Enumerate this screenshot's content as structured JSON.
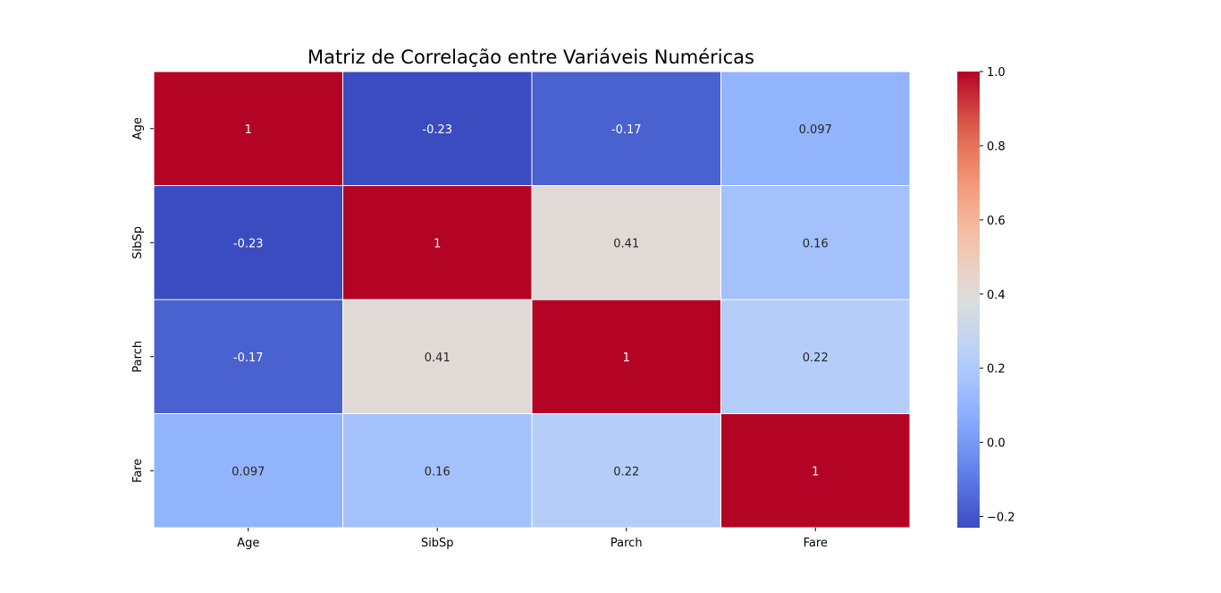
{
  "chart_data": {
    "type": "heatmap",
    "title": "Matriz de Correlação entre Variáveis Numéricas",
    "xlabel": "",
    "ylabel": "",
    "x_categories": [
      "Age",
      "SibSp",
      "Parch",
      "Fare"
    ],
    "y_categories": [
      "Age",
      "SibSp",
      "Parch",
      "Fare"
    ],
    "values": [
      [
        1,
        -0.23,
        -0.17,
        0.097
      ],
      [
        -0.23,
        1,
        0.41,
        0.16
      ],
      [
        -0.17,
        0.41,
        1,
        0.22
      ],
      [
        0.097,
        0.16,
        0.22,
        1
      ]
    ],
    "annotations": [
      [
        "1",
        "-0.23",
        "-0.17",
        "0.097"
      ],
      [
        "-0.23",
        "1",
        "0.41",
        "0.16"
      ],
      [
        "-0.17",
        "0.41",
        "1",
        "0.22"
      ],
      [
        "0.097",
        "0.16",
        "0.22",
        "1"
      ]
    ],
    "colormap": "coolwarm",
    "vmin": -0.23,
    "vmax": 1,
    "colorbar_ticks": [
      "−0.2",
      "0.0",
      "0.2",
      "0.4",
      "0.6",
      "0.8",
      "1.0"
    ],
    "colorbar_tick_values": [
      -0.2,
      0,
      0.2,
      0.4,
      0.6,
      0.8,
      1.0
    ],
    "cell_border_color": "#ffffff"
  }
}
